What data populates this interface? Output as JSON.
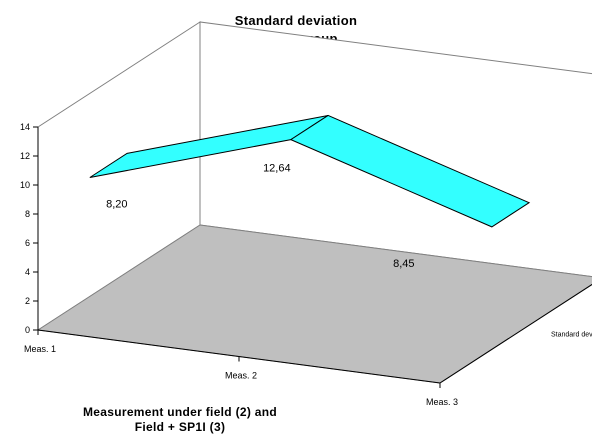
{
  "chart_data": {
    "type": "area",
    "title": "Standard deviation",
    "subtitle": "Verum group",
    "xlabel_line1": "Measurement under field (2) and",
    "xlabel_line2": "Field + SP1I (3)",
    "categories": [
      "Meas. 1",
      "Meas. 2",
      "Meas. 3"
    ],
    "series": [
      {
        "name": "Standard deviation",
        "values": [
          8.2,
          12.64,
          8.45
        ]
      }
    ],
    "data_labels": [
      "8,20",
      "12,64",
      "8,45"
    ],
    "ylim": [
      0,
      14
    ],
    "yticks": [
      "0",
      "2",
      "4",
      "6",
      "8",
      "10",
      "12",
      "14"
    ],
    "depth_axis_label": "Standard deviation",
    "colors": {
      "series_fill": "#33FFFF",
      "series_stroke": "#000000",
      "floor": "#BFBFBF",
      "walls": "#FFFFFF"
    }
  }
}
